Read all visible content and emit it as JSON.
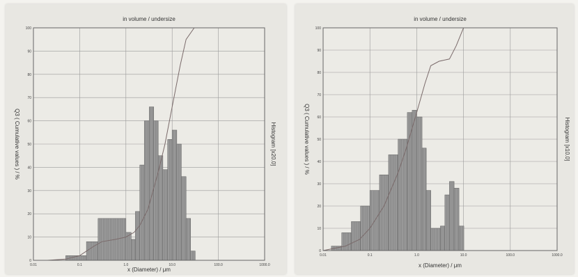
{
  "chart_data": [
    {
      "type": "bar",
      "id": "left",
      "title": "in volume / undersize",
      "xlabel": "x (Diameter) / μm",
      "ylabel": "Q3 ( Cumulative values ) / %",
      "y2label": "Histogram [x20.0]",
      "x_scale": "log",
      "xlim": [
        0.01,
        1000
      ],
      "ylim": [
        0,
        100
      ],
      "x_ticks": [
        "0.01",
        "0.1",
        "1.0",
        "10.0",
        "100.0",
        "1000.0"
      ],
      "y_ticks": [
        "0",
        "10",
        "20",
        "30",
        "40",
        "50",
        "60",
        "70",
        "80",
        "90",
        "100"
      ],
      "grid": true,
      "histogram": {
        "x": [
          0.05,
          0.14,
          0.25,
          1.0,
          1.3,
          1.6,
          2.0,
          2.5,
          3.2,
          4.0,
          5.0,
          6.3,
          8.0,
          10.0,
          12.6,
          15.8,
          20.0,
          25.1
        ],
        "values": [
          2,
          8,
          18,
          12,
          9,
          21,
          41,
          60,
          66,
          60,
          45,
          39,
          52,
          56,
          50,
          36,
          18,
          4
        ]
      },
      "cumulative": {
        "x": [
          0.02,
          0.05,
          0.1,
          0.2,
          0.3,
          0.6,
          1.0,
          1.5,
          2.0,
          3.0,
          5.0,
          7.0,
          10.0,
          15.0,
          20.0,
          30.0,
          1000
        ],
        "values": [
          0,
          0.5,
          2,
          6,
          8,
          9,
          10,
          12,
          15,
          22,
          38,
          50,
          66,
          84,
          95,
          100,
          100
        ]
      }
    },
    {
      "type": "bar",
      "id": "right",
      "title": "in volume / undersize",
      "xlabel": "x (Diameter) / μm",
      "ylabel": "Q3 ( Cumulative values ) / %",
      "y2label": "Histogram [x10.0]",
      "x_scale": "log",
      "xlim": [
        0.01,
        1000
      ],
      "ylim": [
        0,
        100
      ],
      "x_ticks": [
        "0.01",
        "0.1",
        "1.0",
        "10.0",
        "100.0",
        "1000.0"
      ],
      "y_ticks": [
        "0",
        "10",
        "20",
        "30",
        "40",
        "50",
        "60",
        "70",
        "80",
        "90",
        "100"
      ],
      "grid": true,
      "histogram": {
        "x": [
          0.015,
          0.025,
          0.04,
          0.063,
          0.1,
          0.16,
          0.25,
          0.4,
          0.63,
          0.8,
          1.0,
          1.3,
          1.6,
          2.0,
          3.2,
          4.0,
          5.0,
          6.3,
          8.0
        ],
        "values": [
          2,
          8,
          13,
          20,
          27,
          34,
          43,
          50,
          62,
          63,
          60,
          46,
          27,
          10,
          11,
          25,
          31,
          28,
          11
        ]
      },
      "cumulative": {
        "x": [
          0.01,
          0.03,
          0.06,
          0.1,
          0.2,
          0.4,
          0.6,
          1.0,
          1.5,
          2.0,
          3.0,
          5.0,
          7.0,
          10.0,
          15.0,
          1000
        ],
        "values": [
          0,
          2,
          5,
          10,
          20,
          35,
          46,
          62,
          75,
          83,
          85,
          86,
          92,
          100,
          100,
          100
        ]
      }
    }
  ]
}
